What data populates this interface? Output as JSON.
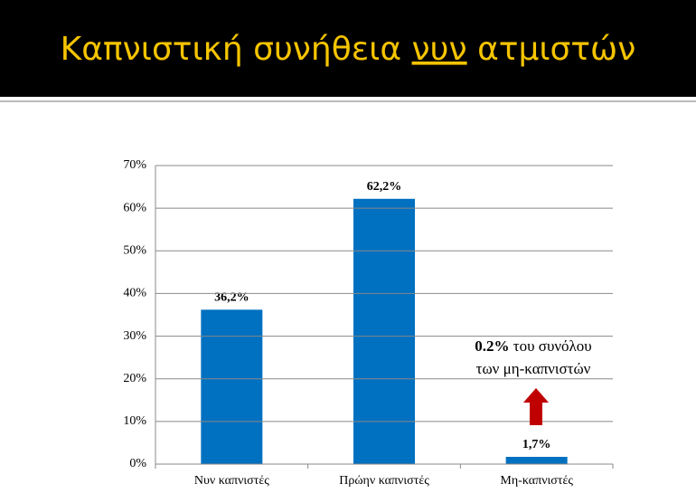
{
  "slide_title": {
    "before": "Καπνιστική συνήθεια",
    "underlined": "νυν",
    "after": "ατμιστών"
  },
  "chart_data": {
    "type": "bar",
    "categories": [
      "Νυν καπνιστές",
      "Πρώην καπνιστές",
      "Μη-καπνιστές"
    ],
    "values": [
      36.2,
      62.2,
      1.7
    ],
    "value_labels": [
      "36,2%",
      "62,2%",
      "1,7%"
    ],
    "color": "#0070c0",
    "ylim": [
      0,
      70
    ],
    "yticks": [
      {
        "value": 0,
        "label": "0%"
      },
      {
        "value": 10,
        "label": "10%"
      },
      {
        "value": 20,
        "label": "20%"
      },
      {
        "value": 30,
        "label": "30%"
      },
      {
        "value": 40,
        "label": "40%"
      },
      {
        "value": 50,
        "label": "50%"
      },
      {
        "value": 60,
        "label": "60%"
      },
      {
        "value": 70,
        "label": "70%"
      }
    ],
    "grid": true,
    "annotation": {
      "bold": "0.2%",
      "text": "του συνόλου",
      "line2": "των μη-καπνιστών"
    }
  }
}
